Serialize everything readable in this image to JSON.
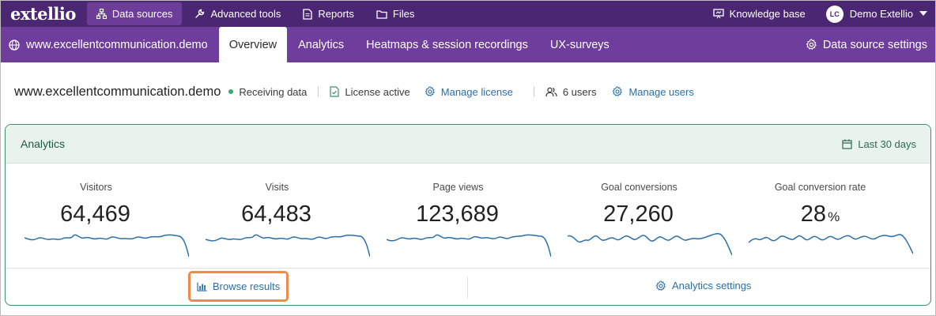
{
  "topbar": {
    "logo": "extellio",
    "nav": [
      {
        "label": "Data sources",
        "icon": "sitemap-icon",
        "active": true
      },
      {
        "label": "Advanced tools",
        "icon": "wrench-icon",
        "active": false
      },
      {
        "label": "Reports",
        "icon": "document-icon",
        "active": false
      },
      {
        "label": "Files",
        "icon": "folder-icon",
        "active": false
      }
    ],
    "knowledge_base": "Knowledge base",
    "user": {
      "initials": "LC",
      "name": "Demo Extellio"
    }
  },
  "subbar": {
    "site": "www.excellentcommunication.demo",
    "tabs": [
      {
        "label": "Overview",
        "active": true
      },
      {
        "label": "Analytics",
        "active": false
      },
      {
        "label": "Heatmaps & session recordings",
        "active": false
      },
      {
        "label": "UX-surveys",
        "active": false
      }
    ],
    "settings": "Data source settings"
  },
  "info": {
    "site_title": "www.excellentcommunication.demo",
    "status": "Receiving data",
    "license": "License active",
    "manage_license": "Manage license",
    "users": "6 users",
    "manage_users": "Manage users"
  },
  "analytics": {
    "title": "Analytics",
    "date_range": "Last 30 days",
    "metrics": [
      {
        "label": "Visitors",
        "value": "64,469",
        "unit": ""
      },
      {
        "label": "Visits",
        "value": "64,483",
        "unit": ""
      },
      {
        "label": "Page views",
        "value": "123,689",
        "unit": ""
      },
      {
        "label": "Goal conversions",
        "value": "27,260",
        "unit": ""
      },
      {
        "label": "Goal conversion rate",
        "value": "28",
        "unit": "%"
      }
    ],
    "browse_results": "Browse results",
    "analytics_settings": "Analytics settings"
  },
  "colors": {
    "topbar": "#4b2773",
    "subbar": "#6f3d9c",
    "card_border": "#3f8f6a",
    "spark": "#2b6fa8",
    "highlight": "#f0894a"
  }
}
